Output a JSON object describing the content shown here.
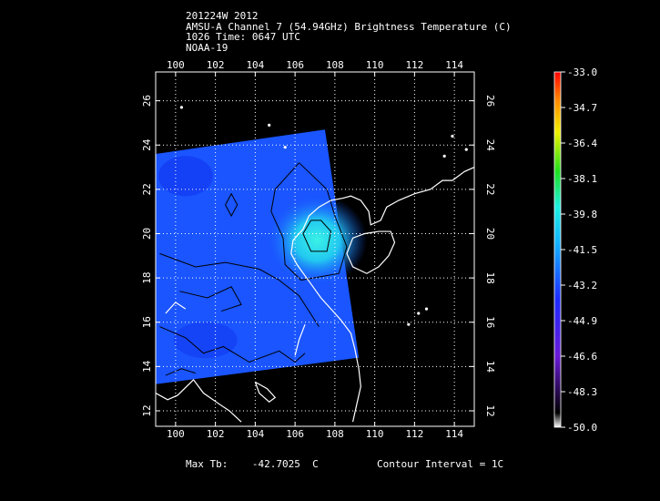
{
  "header": {
    "line1": "201224W 2012",
    "line2": "AMSU-A Channel 7 (54.94GHz) Brightness Temperature (C)",
    "line3": "1026 Time: 0647 UTC",
    "line4": "NOAA-19"
  },
  "axes": {
    "lon_ticks": [
      "100",
      "102",
      "104",
      "106",
      "108",
      "110",
      "112",
      "114"
    ],
    "lat_ticks": [
      "12",
      "14",
      "16",
      "18",
      "20",
      "22",
      "24",
      "26"
    ],
    "lon_range": [
      99,
      115
    ],
    "lat_range": [
      11.3,
      27.3
    ]
  },
  "colorbar": {
    "labels": [
      "-33.0",
      "-34.7",
      "-36.4",
      "-38.1",
      "-39.8",
      "-41.5",
      "-43.2",
      "-44.9",
      "-46.6",
      "-48.3",
      "-50.0"
    ],
    "range": [
      -50.0,
      -33.0
    ]
  },
  "footer": {
    "max_tb_label": "Max Tb:",
    "max_tb_value": "-42.7025",
    "max_tb_unit": "C",
    "contour": "Contour Interval = 1C"
  },
  "swath": {
    "corners_lonlat": [
      [
        99,
        23.6
      ],
      [
        107.5,
        24.7
      ],
      [
        109.2,
        14.4
      ],
      [
        99,
        13.2
      ]
    ],
    "max_center_lonlat": [
      107.1,
      19.7
    ]
  },
  "colors": {
    "swath_base": "#1a55ff",
    "swath_dark": "#1238f2",
    "warm_core": "#33e8ee",
    "frame": "#ffffff",
    "grid": "#ffffff"
  }
}
